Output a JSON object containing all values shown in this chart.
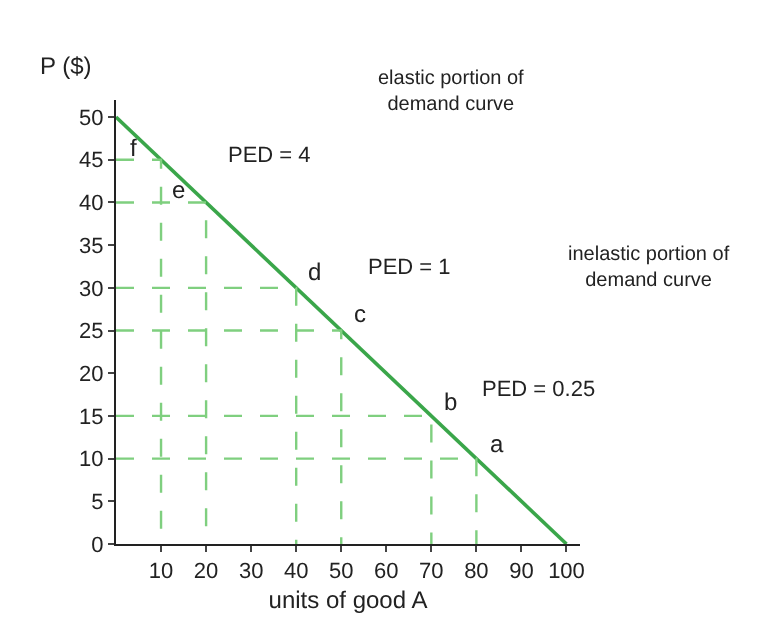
{
  "chart_data": {
    "type": "line",
    "xlabel": "units of good A",
    "ylabel": "P ($)",
    "series": [
      {
        "x": [
          0,
          100
        ],
        "values": [
          50,
          0
        ],
        "color": "#3aa64a",
        "line_style": "solid"
      },
      {
        "x": [
          0,
          10,
          10
        ],
        "values": [
          45,
          45,
          0
        ],
        "color": "#7fcf7f",
        "line_style": "dashed"
      },
      {
        "x": [
          0,
          20,
          20
        ],
        "values": [
          40,
          40,
          0
        ],
        "color": "#7fcf7f",
        "line_style": "dashed"
      },
      {
        "x": [
          0,
          40,
          40
        ],
        "values": [
          30,
          30,
          0
        ],
        "color": "#7fcf7f",
        "line_style": "dashed"
      },
      {
        "x": [
          0,
          50,
          50
        ],
        "values": [
          25,
          25,
          0
        ],
        "color": "#7fcf7f",
        "line_style": "dashed"
      },
      {
        "x": [
          0,
          70,
          70
        ],
        "values": [
          15,
          15,
          0
        ],
        "color": "#7fcf7f",
        "line_style": "dashed"
      },
      {
        "x": [
          0,
          80,
          80
        ],
        "values": [
          10,
          10,
          0
        ],
        "color": "#7fcf7f",
        "line_style": "dashed"
      }
    ],
    "annotations": [
      {
        "text": "f",
        "x": 10,
        "y": 45
      },
      {
        "text": "e",
        "x": 20,
        "y": 40
      },
      {
        "text": "d",
        "x": 40,
        "y": 30
      },
      {
        "text": "c",
        "x": 50,
        "y": 25
      },
      {
        "text": "b",
        "x": 70,
        "y": 15
      },
      {
        "text": "a",
        "x": 80,
        "y": 10
      },
      "PED = 4",
      "PED = 1",
      "PED = 0.25",
      "elastic portion of demand curve",
      "inelastic portion of demand curve"
    ],
    "xlim": [
      0,
      103
    ],
    "ylim": [
      0,
      52
    ],
    "xticks": [
      10,
      20,
      30,
      40,
      50,
      60,
      70,
      80,
      90,
      100
    ],
    "yticks": [
      0,
      5,
      10,
      15,
      20,
      25,
      30,
      35,
      40,
      45,
      50
    ],
    "marker": "none"
  }
}
